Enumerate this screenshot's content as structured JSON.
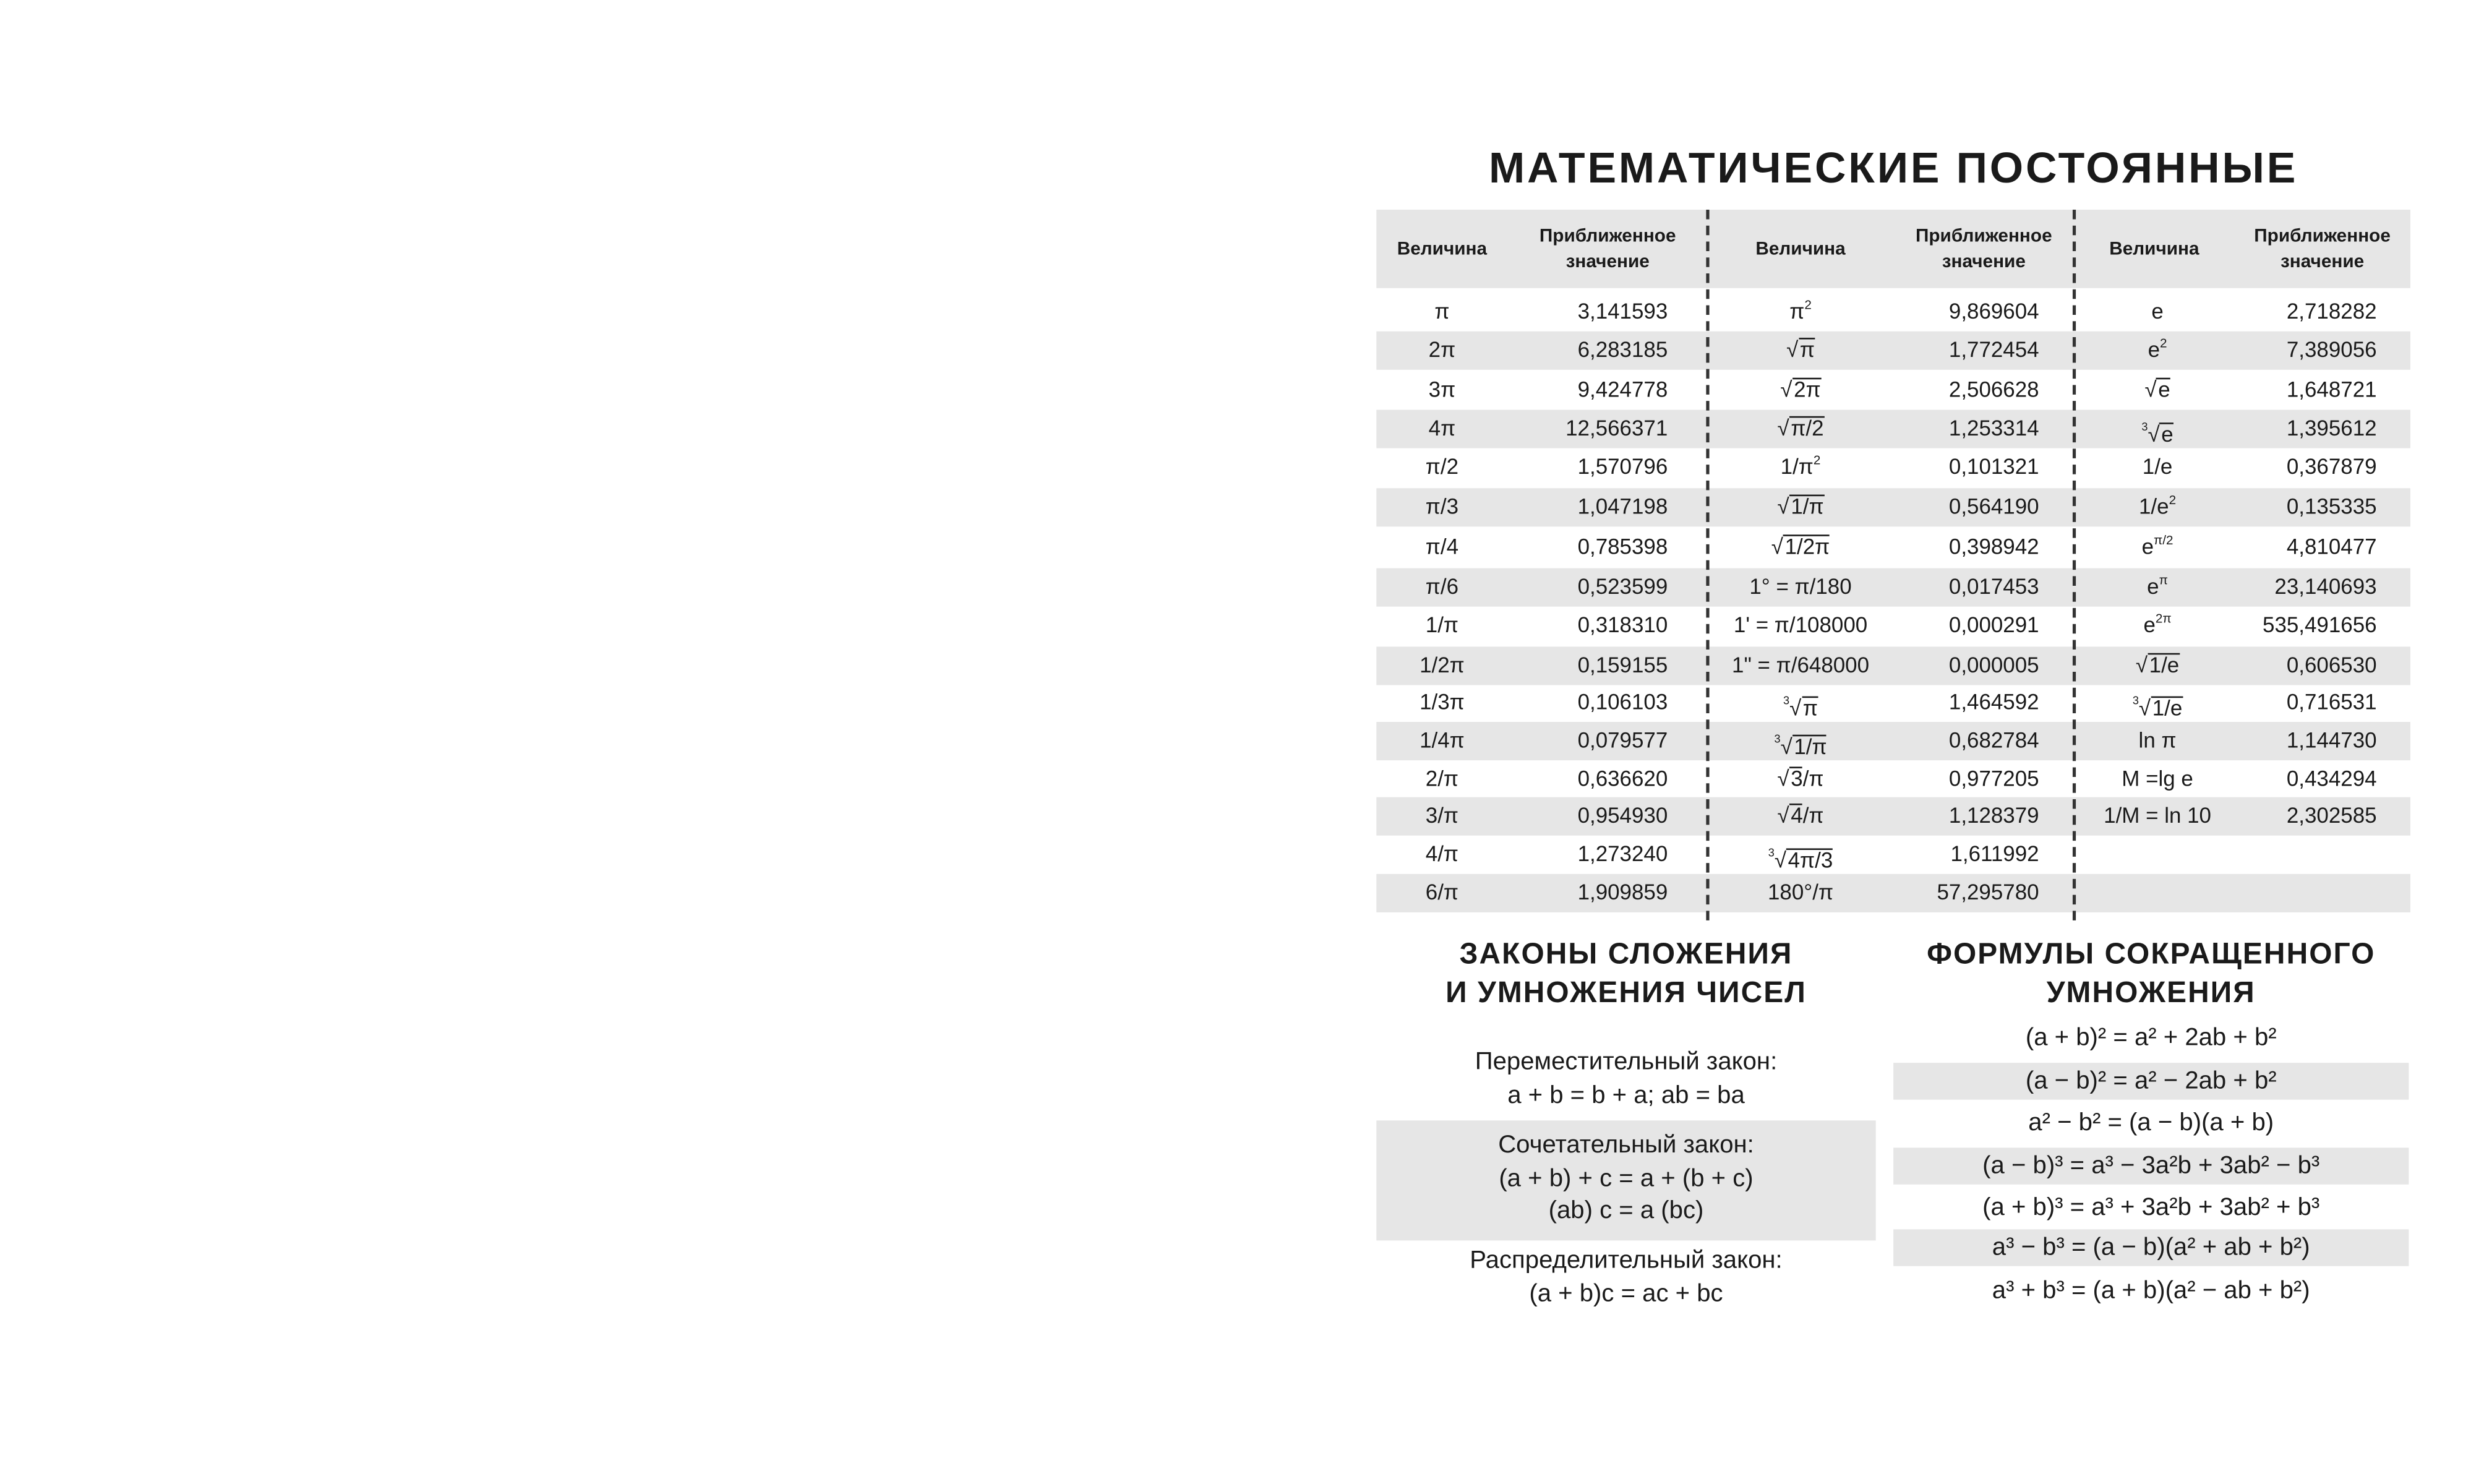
{
  "title": "МАТЕМАТИЧЕСКИЕ ПОСТОЯННЫЕ",
  "table": {
    "headers": [
      "Величина",
      "Приближенное значение",
      "Величина",
      "Приближенное значение",
      "Величина",
      "Приближенное значение"
    ],
    "rows": [
      [
        {
          "t": "π"
        },
        "3,141593",
        {
          "b": "π",
          "sup": "2"
        },
        "9,869604",
        {
          "t": "e"
        },
        "2,718282"
      ],
      [
        {
          "t": "2π"
        },
        "6,283185",
        {
          "rad": "√",
          "u": "π"
        },
        "1,772454",
        {
          "b": "e",
          "sup": "2"
        },
        "7,389056"
      ],
      [
        {
          "t": "3π"
        },
        "9,424778",
        {
          "rad": "√",
          "u": "2π"
        },
        "2,506628",
        {
          "rad": "√",
          "u": "e"
        },
        "1,648721"
      ],
      [
        {
          "t": "4π"
        },
        "12,566371",
        {
          "rad": "√",
          "u": "π/2"
        },
        "1,253314",
        {
          "rad": "√",
          "idx": "3",
          "u": "e"
        },
        "1,395612"
      ],
      [
        {
          "t": "π/2"
        },
        "1,570796",
        {
          "b": "1/π",
          "sup": "2"
        },
        "0,101321",
        {
          "t": "1/e"
        },
        "0,367879"
      ],
      [
        {
          "t": "π/3"
        },
        "1,047198",
        {
          "rad": "√",
          "u": "1/π"
        },
        "0,564190",
        {
          "b": "1/e",
          "sup": "2"
        },
        "0,135335"
      ],
      [
        {
          "t": "π/4"
        },
        "0,785398",
        {
          "rad": "√",
          "u": "1/2π"
        },
        "0,398942",
        {
          "b": "e",
          "sup": "π/2"
        },
        "4,810477"
      ],
      [
        {
          "t": "π/6"
        },
        "0,523599",
        {
          "t": "1° = π/180"
        },
        "0,017453",
        {
          "b": "e",
          "sup": "π"
        },
        "23,140693"
      ],
      [
        {
          "t": "1/π"
        },
        "0,318310",
        {
          "t": "1' = π/108000"
        },
        "0,000291",
        {
          "b": "e",
          "sup": "2π"
        },
        "535,491656"
      ],
      [
        {
          "t": "1/2π"
        },
        "0,159155",
        {
          "t": "1\" = π/648000"
        },
        "0,000005",
        {
          "rad": "√",
          "u": "1/e"
        },
        "0,606530"
      ],
      [
        {
          "t": "1/3π"
        },
        "0,106103",
        {
          "rad": "√",
          "idx": "3",
          "u": "π"
        },
        "1,464592",
        {
          "rad": "√",
          "idx": "3",
          "u": "1/e"
        },
        "0,716531"
      ],
      [
        {
          "t": "1/4π"
        },
        "0,079577",
        {
          "rad": "√",
          "idx": "3",
          "u": "1/π"
        },
        "0,682784",
        {
          "t": "ln π"
        },
        "1,144730"
      ],
      [
        {
          "t": "2/π"
        },
        "0,636620",
        {
          "rad": "√",
          "u": "3",
          "a": "/π"
        },
        "0,977205",
        {
          "t": "M =lg e"
        },
        "0,434294"
      ],
      [
        {
          "t": "3/π"
        },
        "0,954930",
        {
          "rad": "√",
          "u": "4",
          "a": "/π"
        },
        "1,128379",
        {
          "t": "1/M = ln 10"
        },
        "2,302585"
      ],
      [
        {
          "t": "4/π"
        },
        "1,273240",
        {
          "rad": "√",
          "idx": "3",
          "u": "4π/3"
        },
        "1,611992",
        {
          "t": ""
        },
        ""
      ],
      [
        {
          "t": "6/π"
        },
        "1,909859",
        {
          "t": "180°/π"
        },
        "57,295780",
        {
          "t": ""
        },
        ""
      ]
    ]
  },
  "laws": {
    "heading": [
      "ЗАКОНЫ СЛОЖЕНИЯ",
      "И УМНОЖЕНИЯ ЧИСЕЛ"
    ],
    "blocks": [
      {
        "lines": [
          "Переместительный закон:",
          "a + b = b + a; ab = ba"
        ]
      },
      {
        "lines": [
          "Сочетательный закон:",
          "(a + b) + c = a + (b + c)",
          "(ab) c = a (bc)"
        ]
      },
      {
        "lines": [
          "Распределительный закон:",
          "(a + b)c = ac + bc"
        ]
      }
    ]
  },
  "formulas": {
    "heading": [
      "ФОРМУЛЫ СОКРАЩЕННОГО",
      "УМНОЖЕНИЯ"
    ],
    "items": [
      "(a + b)² = a² + 2ab + b²",
      "(a − b)² = a² − 2ab + b²",
      "a² − b² = (a − b)(a + b)",
      "(a − b)³ = a³ − 3a²b + 3ab² − b³",
      "(a + b)³ = a³ + 3a²b + 3ab² + b³",
      "a³ − b³ = (a − b)(a² + ab + b²)",
      "a³ + b³ = (a + b)(a² − ab + b²)"
    ]
  },
  "colors": {
    "stripe": "#e6e6e6",
    "text": "#1a1a1a"
  }
}
